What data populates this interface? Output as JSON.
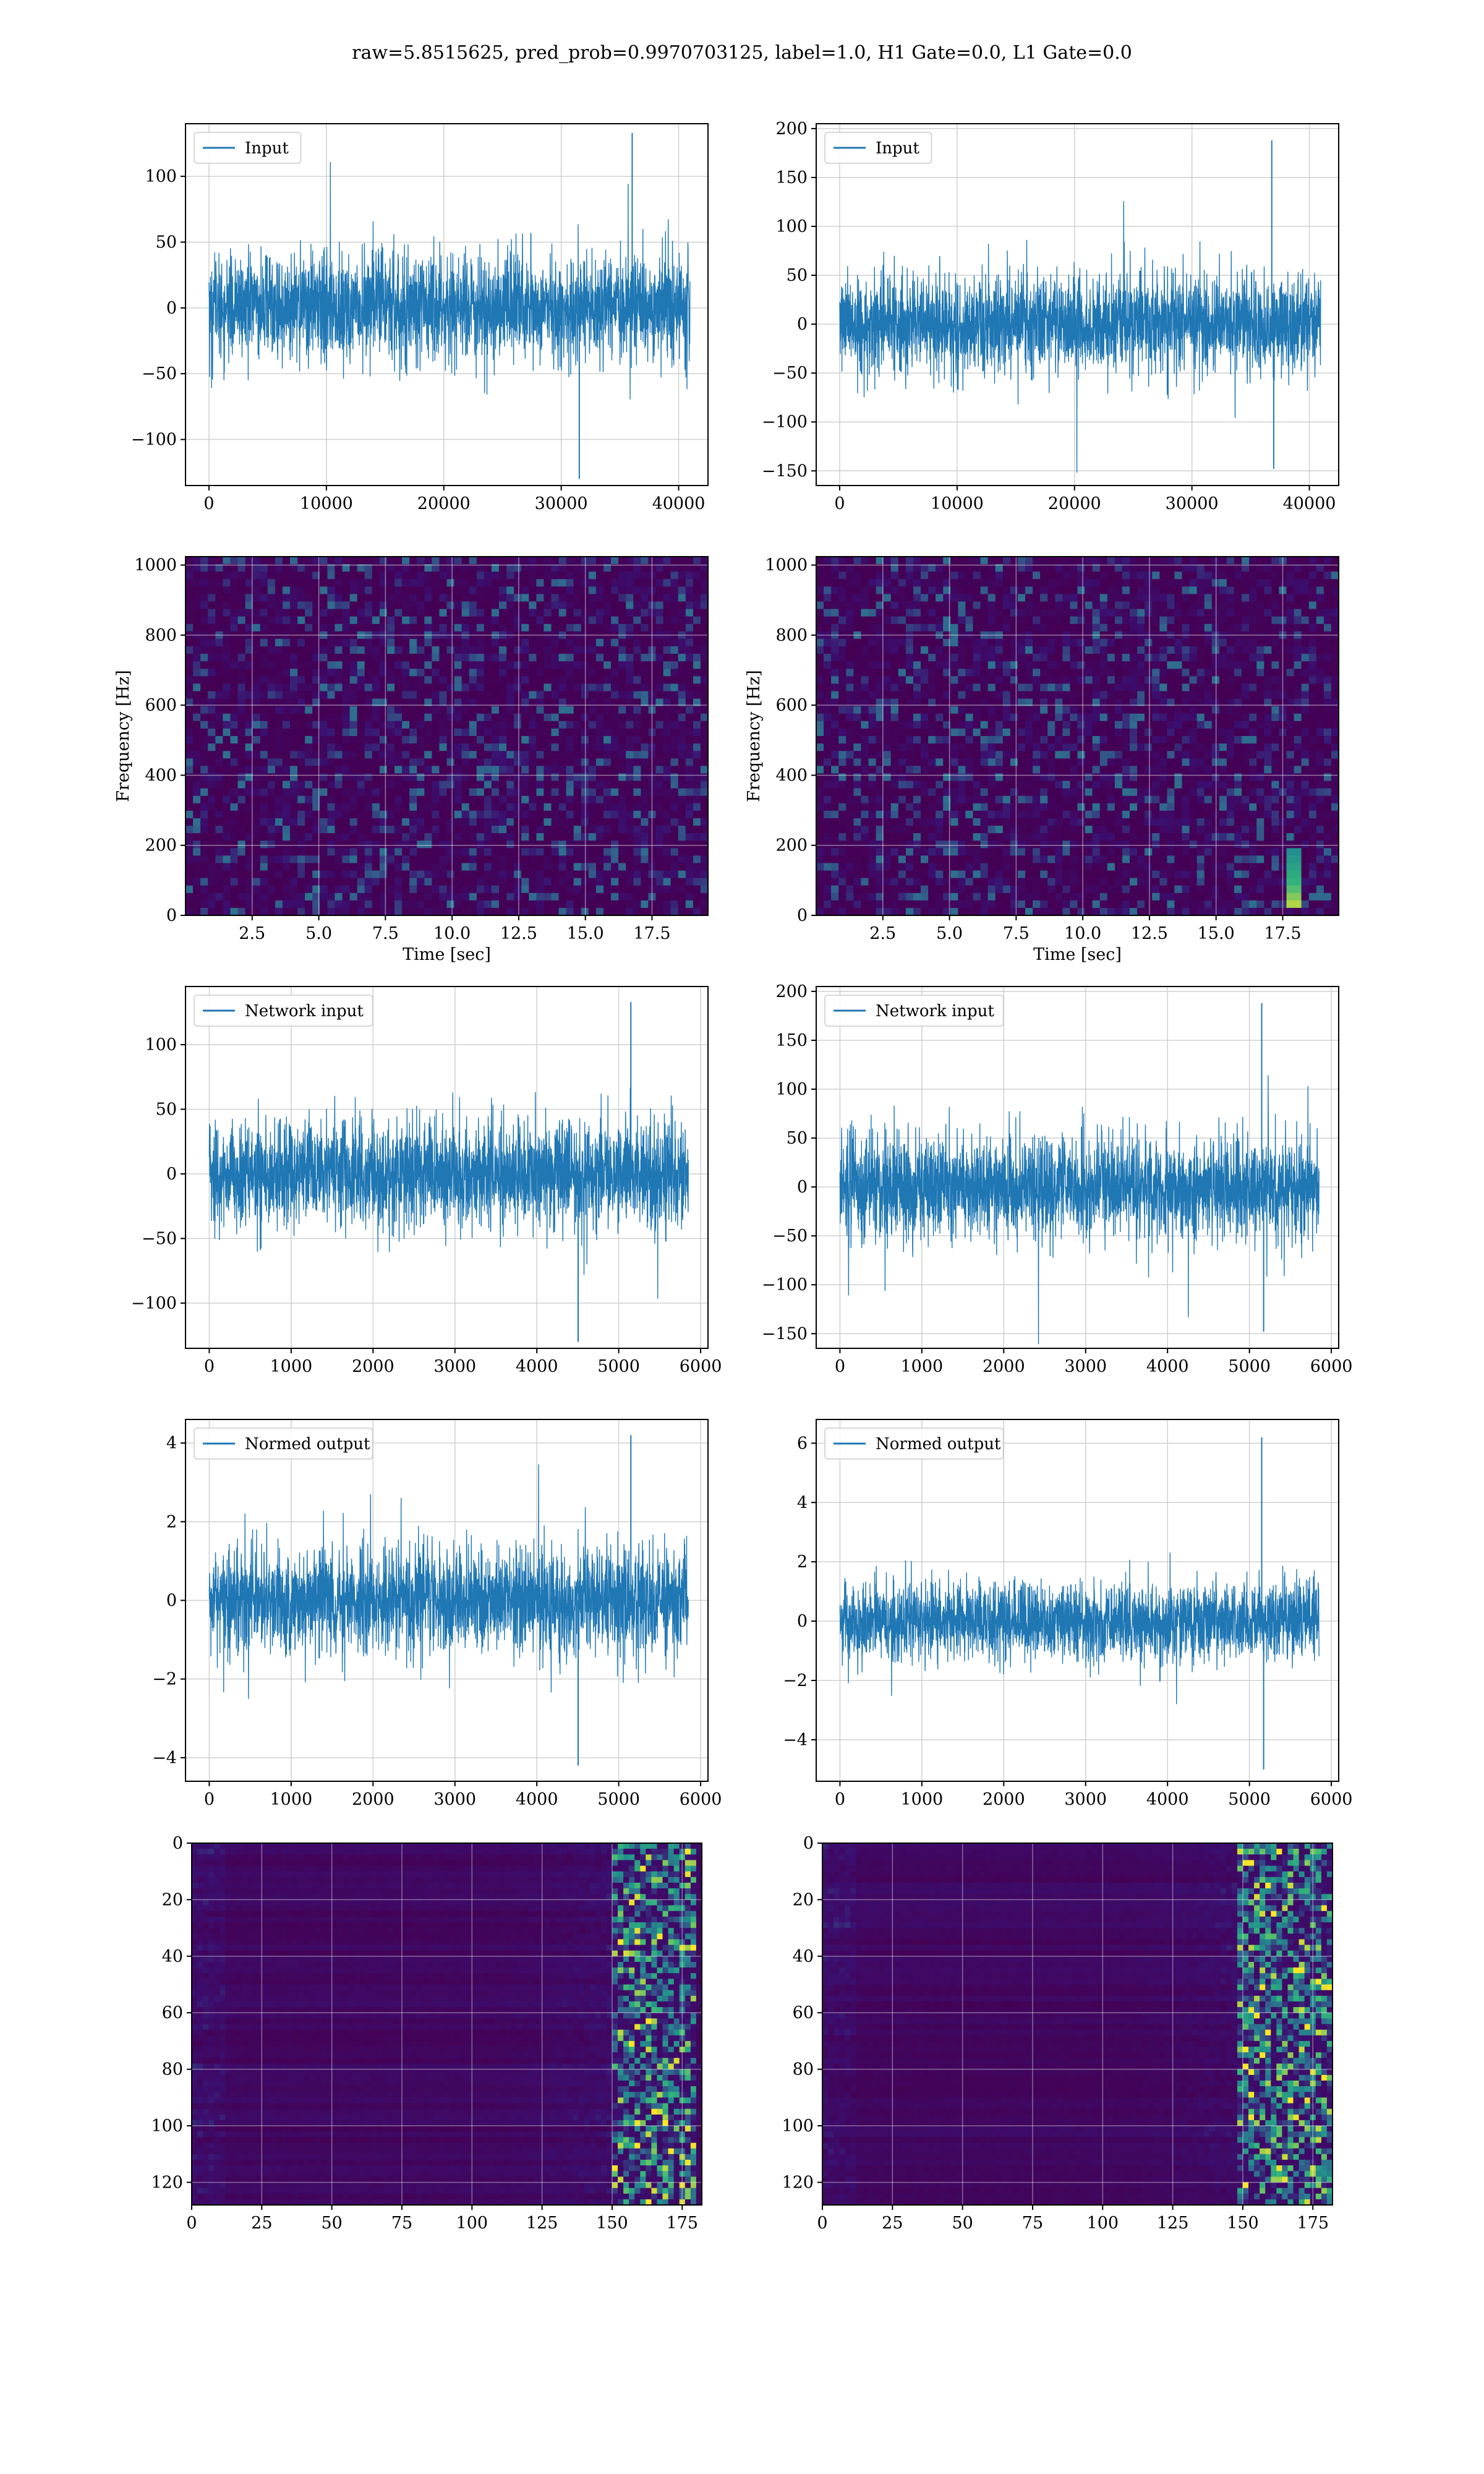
{
  "figure": {
    "title": "raw=5.8515625, pred_prob=0.9970703125, label=1.0, H1 Gate=0.0, L1 Gate=0.0"
  },
  "colors": {
    "line": "#1f77b4",
    "grid": "#d0d0d0",
    "viridis_dark": "#440154",
    "viridis_purple": "#3b0f70",
    "viridis_blue": "#31688e",
    "viridis_teal": "#21908d",
    "viridis_green": "#35b779",
    "viridis_yellow": "#fde725"
  },
  "chart_data": [
    {
      "id": "h1-input",
      "type": "line",
      "legend": "Input",
      "legend_position": "upper left",
      "xlim": [
        -2000,
        42500
      ],
      "ylim": [
        -135,
        140
      ],
      "xticks": [
        0,
        10000,
        20000,
        30000,
        40000
      ],
      "yticks": [
        -100,
        -50,
        0,
        50,
        100
      ],
      "xticklabels": [
        "0",
        "10000",
        "20000",
        "30000",
        "40000"
      ],
      "yticklabels": [
        "−100",
        "−50",
        "0",
        "50",
        "100"
      ],
      "series": {
        "x_start": 0,
        "x_end": 40960,
        "amplitude": 20,
        "max": 133,
        "min": -130
      },
      "grid": true,
      "xlabel": "",
      "ylabel": ""
    },
    {
      "id": "l1-input",
      "type": "line",
      "legend": "Input",
      "legend_position": "upper left",
      "xlim": [
        -2000,
        42500
      ],
      "ylim": [
        -165,
        205
      ],
      "xticks": [
        0,
        10000,
        20000,
        30000,
        40000
      ],
      "yticks": [
        -150,
        -100,
        -50,
        0,
        50,
        100,
        150,
        200
      ],
      "xticklabels": [
        "0",
        "10000",
        "20000",
        "30000",
        "40000"
      ],
      "yticklabels": [
        "−150",
        "−100",
        "−50",
        "0",
        "50",
        "100",
        "150",
        "200"
      ],
      "series": {
        "x_start": 0,
        "x_end": 40960,
        "amplitude": 25,
        "max": 188,
        "min": -148,
        "glitch_x": 36800
      },
      "grid": true,
      "xlabel": "",
      "ylabel": ""
    },
    {
      "id": "h1-spectrogram",
      "type": "heatmap",
      "colormap": "viridis",
      "xlim": [
        0,
        19.6
      ],
      "ylim": [
        0,
        1024
      ],
      "xticks": [
        2.5,
        5.0,
        7.5,
        10.0,
        12.5,
        15.0,
        17.5
      ],
      "yticks": [
        0,
        200,
        400,
        600,
        800,
        1000
      ],
      "xticklabels": [
        "2.5",
        "5.0",
        "7.5",
        "10.0",
        "12.5",
        "15.0",
        "17.5"
      ],
      "yticklabels": [
        "0",
        "200",
        "400",
        "600",
        "800",
        "1000"
      ],
      "xlabel": "Time [sec]",
      "ylabel": "Frequency [Hz]",
      "grid": true
    },
    {
      "id": "l1-spectrogram",
      "type": "heatmap",
      "colormap": "viridis",
      "xlim": [
        0,
        19.6
      ],
      "ylim": [
        0,
        1024
      ],
      "xticks": [
        2.5,
        5.0,
        7.5,
        10.0,
        12.5,
        15.0,
        17.5
      ],
      "yticks": [
        0,
        200,
        400,
        600,
        800,
        1000
      ],
      "xticklabels": [
        "2.5",
        "5.0",
        "7.5",
        "10.0",
        "12.5",
        "15.0",
        "17.5"
      ],
      "yticklabels": [
        "0",
        "200",
        "400",
        "600",
        "800",
        "1000"
      ],
      "xlabel": "Time [sec]",
      "ylabel": "Frequency [Hz]",
      "grid": true,
      "feature": {
        "time": 18.0,
        "freq_low": 20,
        "freq_high": 200
      }
    },
    {
      "id": "h1-network-input",
      "type": "line",
      "legend": "Network input",
      "legend_position": "upper left",
      "xlim": [
        -290,
        6090
      ],
      "ylim": [
        -135,
        145
      ],
      "xticks": [
        0,
        1000,
        2000,
        3000,
        4000,
        5000,
        6000
      ],
      "yticks": [
        -100,
        -50,
        0,
        50,
        100
      ],
      "xticklabels": [
        "0",
        "1000",
        "2000",
        "3000",
        "4000",
        "5000",
        "6000"
      ],
      "yticklabels": [
        "−100",
        "−50",
        "0",
        "50",
        "100"
      ],
      "series": {
        "x_start": 0,
        "x_end": 5850,
        "amplitude": 20,
        "max": 133,
        "min": -130
      },
      "grid": true,
      "xlabel": "",
      "ylabel": ""
    },
    {
      "id": "l1-network-input",
      "type": "line",
      "legend": "Network input",
      "legend_position": "upper left",
      "xlim": [
        -290,
        6090
      ],
      "ylim": [
        -165,
        205
      ],
      "xticks": [
        0,
        1000,
        2000,
        3000,
        4000,
        5000,
        6000
      ],
      "yticks": [
        -150,
        -100,
        -50,
        0,
        50,
        100,
        150,
        200
      ],
      "xticklabels": [
        "0",
        "1000",
        "2000",
        "3000",
        "4000",
        "5000",
        "6000"
      ],
      "yticklabels": [
        "−150",
        "−100",
        "−50",
        "0",
        "50",
        "100",
        "150",
        "200"
      ],
      "series": {
        "x_start": 0,
        "x_end": 5850,
        "amplitude": 25,
        "max": 188,
        "min": -148,
        "glitch_x": 5150
      },
      "grid": true,
      "xlabel": "",
      "ylabel": ""
    },
    {
      "id": "h1-normed-output",
      "type": "line",
      "legend": "Normed output",
      "legend_position": "upper left",
      "xlim": [
        -290,
        6090
      ],
      "ylim": [
        -4.6,
        4.6
      ],
      "xticks": [
        0,
        1000,
        2000,
        3000,
        4000,
        5000,
        6000
      ],
      "yticks": [
        -4,
        -2,
        0,
        2,
        4
      ],
      "xticklabels": [
        "0",
        "1000",
        "2000",
        "3000",
        "4000",
        "5000",
        "6000"
      ],
      "yticklabels": [
        "−4",
        "−2",
        "0",
        "2",
        "4"
      ],
      "series": {
        "x_start": 0,
        "x_end": 5850,
        "amplitude": 0.65,
        "max": 4.2,
        "min": -4.2
      },
      "grid": true,
      "xlabel": "",
      "ylabel": ""
    },
    {
      "id": "l1-normed-output",
      "type": "line",
      "legend": "Normed output",
      "legend_position": "upper left",
      "xlim": [
        -290,
        6090
      ],
      "ylim": [
        -5.4,
        6.8
      ],
      "xticks": [
        0,
        1000,
        2000,
        3000,
        4000,
        5000,
        6000
      ],
      "yticks": [
        -4,
        -2,
        0,
        2,
        4,
        6
      ],
      "xticklabels": [
        "0",
        "1000",
        "2000",
        "3000",
        "4000",
        "5000",
        "6000"
      ],
      "yticklabels": [
        "−4",
        "−2",
        "0",
        "2",
        "4",
        "6"
      ],
      "series": {
        "x_start": 0,
        "x_end": 5850,
        "amplitude": 0.65,
        "max": 6.2,
        "min": -5.0,
        "glitch_x": 5150
      },
      "grid": true,
      "xlabel": "",
      "ylabel": ""
    },
    {
      "id": "h1-activation-map",
      "type": "heatmap",
      "colormap": "viridis",
      "xlim": [
        0,
        182
      ],
      "ylim": [
        128,
        0
      ],
      "xticks": [
        0,
        25,
        50,
        75,
        100,
        125,
        150,
        175
      ],
      "yticks": [
        0,
        20,
        40,
        60,
        80,
        100,
        120
      ],
      "xticklabels": [
        "0",
        "25",
        "50",
        "75",
        "100",
        "125",
        "150",
        "175"
      ],
      "yticklabels": [
        "0",
        "20",
        "40",
        "60",
        "80",
        "100",
        "120"
      ],
      "xlabel": "",
      "ylabel": "",
      "grid": true,
      "feature": {
        "column_start": 150,
        "column_end": 180
      }
    },
    {
      "id": "l1-activation-map",
      "type": "heatmap",
      "colormap": "viridis",
      "xlim": [
        0,
        182
      ],
      "ylim": [
        128,
        0
      ],
      "xticks": [
        0,
        25,
        50,
        75,
        100,
        125,
        150,
        175
      ],
      "yticks": [
        0,
        20,
        40,
        60,
        80,
        100,
        120
      ],
      "xticklabels": [
        "0",
        "25",
        "50",
        "75",
        "100",
        "125",
        "150",
        "175"
      ],
      "yticklabels": [
        "0",
        "20",
        "40",
        "60",
        "80",
        "100",
        "120"
      ],
      "xlabel": "",
      "ylabel": "",
      "grid": true,
      "feature": {
        "column_start": 148,
        "column_end": 182
      }
    }
  ]
}
